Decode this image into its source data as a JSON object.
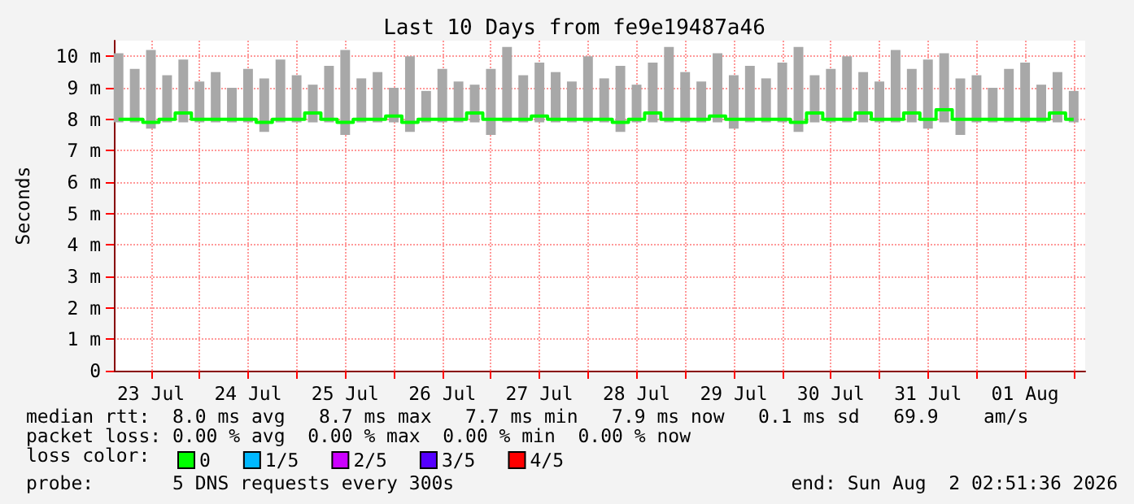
{
  "chart_data": {
    "type": "line",
    "title": "Last 10 Days from fe9e19487a46",
    "ylabel": "Seconds",
    "x": [
      "2026-07-23T04:00",
      "2026-07-23T08:00",
      "2026-07-23T12:00",
      "2026-07-23T16:00",
      "2026-07-23T20:00",
      "2026-07-24T00:00",
      "2026-07-24T04:00",
      "2026-07-24T08:00",
      "2026-07-24T12:00",
      "2026-07-24T16:00",
      "2026-07-24T20:00",
      "2026-07-25T00:00",
      "2026-07-25T04:00",
      "2026-07-25T08:00",
      "2026-07-25T12:00",
      "2026-07-25T16:00",
      "2026-07-25T20:00",
      "2026-07-26T00:00",
      "2026-07-26T04:00",
      "2026-07-26T08:00",
      "2026-07-26T12:00",
      "2026-07-26T16:00",
      "2026-07-26T20:00",
      "2026-07-27T00:00",
      "2026-07-27T04:00",
      "2026-07-27T08:00",
      "2026-07-27T12:00",
      "2026-07-27T16:00",
      "2026-07-27T20:00",
      "2026-07-28T00:00",
      "2026-07-28T04:00",
      "2026-07-28T08:00",
      "2026-07-28T12:00",
      "2026-07-28T16:00",
      "2026-07-28T20:00",
      "2026-07-29T00:00",
      "2026-07-29T04:00",
      "2026-07-29T08:00",
      "2026-07-29T12:00",
      "2026-07-29T16:00",
      "2026-07-29T20:00",
      "2026-07-30T00:00",
      "2026-07-30T04:00",
      "2026-07-30T08:00",
      "2026-07-30T12:00",
      "2026-07-30T16:00",
      "2026-07-30T20:00",
      "2026-07-31T00:00",
      "2026-07-31T04:00",
      "2026-07-31T08:00",
      "2026-07-31T12:00",
      "2026-07-31T16:00",
      "2026-07-31T20:00",
      "2026-08-01T00:00",
      "2026-08-01T04:00",
      "2026-08-01T08:00",
      "2026-08-01T12:00",
      "2026-08-01T16:00",
      "2026-08-01T20:00",
      "2026-08-02T00:00"
    ],
    "series": [
      {
        "type": "bar",
        "color": "#a8a8a8",
        "base": [
          7.9,
          7.9,
          7.7,
          7.9,
          7.9,
          7.9,
          7.9,
          7.9,
          7.9,
          7.6,
          7.9,
          7.9,
          7.9,
          7.9,
          7.5,
          7.9,
          7.9,
          7.9,
          7.6,
          7.9,
          7.9,
          7.9,
          7.9,
          7.5,
          7.9,
          7.9,
          7.9,
          7.9,
          7.9,
          7.9,
          7.9,
          7.6,
          7.9,
          7.9,
          7.9,
          7.9,
          7.9,
          7.9,
          7.7,
          7.9,
          7.9,
          7.9,
          7.6,
          7.9,
          7.9,
          7.9,
          7.9,
          7.9,
          7.9,
          7.9,
          7.7,
          7.9,
          7.5,
          7.9,
          7.9,
          7.9,
          7.9,
          7.9,
          7.9,
          7.9
        ],
        "values": [
          2.2,
          1.7,
          2.5,
          1.5,
          2.0,
          1.3,
          1.6,
          1.1,
          1.7,
          1.7,
          2.0,
          1.5,
          1.2,
          1.8,
          2.7,
          1.4,
          1.6,
          1.1,
          2.4,
          1.0,
          1.7,
          1.3,
          1.2,
          2.1,
          2.4,
          1.5,
          1.9,
          1.6,
          1.3,
          2.1,
          1.4,
          2.1,
          1.2,
          1.9,
          2.4,
          1.6,
          1.3,
          2.2,
          1.7,
          1.8,
          1.4,
          1.9,
          2.7,
          1.5,
          1.7,
          2.1,
          1.6,
          1.3,
          2.3,
          1.7,
          2.2,
          2.2,
          1.8,
          1.5,
          1.1,
          1.7,
          1.9,
          1.2,
          1.6,
          1.0
        ]
      },
      {
        "name": "0",
        "color": "#00ff00",
        "values": [
          8.0,
          8.0,
          7.9,
          8.0,
          8.2,
          8.0,
          8.0,
          8.0,
          8.0,
          7.9,
          8.0,
          8.0,
          8.2,
          8.0,
          7.9,
          8.0,
          8.0,
          8.1,
          7.9,
          8.0,
          8.0,
          8.0,
          8.2,
          8.0,
          8.0,
          8.0,
          8.1,
          8.0,
          8.0,
          8.0,
          8.0,
          7.9,
          8.0,
          8.2,
          8.0,
          8.0,
          8.0,
          8.1,
          8.0,
          8.0,
          8.0,
          8.0,
          7.9,
          8.2,
          8.0,
          8.0,
          8.2,
          8.0,
          8.0,
          8.2,
          8.0,
          8.3,
          8.0,
          8.0,
          8.0,
          8.0,
          8.0,
          8.0,
          8.2,
          8.0
        ]
      },
      {
        "type": "line",
        "name": "1/5",
        "color": "#00b8ff",
        "values": [
          null,
          null,
          null,
          null,
          null,
          null,
          null,
          null,
          null,
          null,
          null,
          null,
          null,
          null,
          null,
          null,
          null,
          null,
          null,
          null,
          null,
          null,
          null,
          null,
          null,
          null,
          null,
          null,
          null,
          null,
          null,
          null,
          null,
          null,
          null,
          null,
          null,
          null,
          null,
          null,
          null,
          null,
          null,
          null,
          null,
          null,
          null,
          null,
          null,
          null,
          null,
          null,
          null,
          null,
          null,
          null,
          null,
          null,
          null,
          null
        ]
      },
      {
        "type": "line",
        "name": "2/5",
        "color": "#cc00ff",
        "values": [
          null,
          null,
          null,
          null,
          null,
          null,
          null,
          null,
          null,
          null,
          null,
          null,
          null,
          null,
          null,
          null,
          null,
          null,
          null,
          null,
          null,
          null,
          null,
          null,
          null,
          null,
          null,
          null,
          null,
          null,
          null,
          null,
          null,
          null,
          null,
          null,
          null,
          null,
          null,
          null,
          null,
          null,
          null,
          null,
          null,
          null,
          null,
          null,
          null,
          null,
          null,
          null,
          null,
          null,
          null,
          null,
          null,
          null,
          null,
          null
        ]
      },
      {
        "type": "line",
        "name": "3/5",
        "color": "#5500ff",
        "values": [
          null,
          null,
          null,
          null,
          null,
          null,
          null,
          null,
          null,
          null,
          null,
          null,
          null,
          null,
          null,
          null,
          null,
          null,
          null,
          null,
          null,
          null,
          null,
          null,
          null,
          null,
          null,
          null,
          null,
          null,
          null,
          null,
          null,
          null,
          null,
          null,
          null,
          null,
          null,
          null,
          null,
          null,
          null,
          null,
          null,
          null,
          null,
          null,
          null,
          null,
          null,
          null,
          null,
          null,
          null,
          null,
          null,
          null,
          null,
          null
        ]
      },
      {
        "type": "line",
        "name": "4/5",
        "color": "#ff0000",
        "values": [
          null,
          null,
          null,
          null,
          null,
          null,
          null,
          null,
          null,
          null,
          null,
          null,
          null,
          null,
          null,
          null,
          null,
          null,
          null,
          null,
          null,
          null,
          null,
          null,
          null,
          null,
          null,
          null,
          null,
          null,
          null,
          null,
          null,
          null,
          null,
          null,
          null,
          null,
          null,
          null,
          null,
          null,
          null,
          null,
          null,
          null,
          null,
          null,
          null,
          null,
          null,
          null,
          null,
          null,
          null,
          null,
          null,
          null,
          null,
          null
        ]
      }
    ],
    "xlim": [
      "2026-07-23T02:51",
      "2026-08-02T02:51"
    ],
    "xticks": [
      {
        "value": "2026-07-23T12:00",
        "label": "23 Jul"
      },
      {
        "value": "2026-07-24T00:00",
        "label": null
      },
      {
        "value": "2026-07-24T12:00",
        "label": "24 Jul"
      },
      {
        "value": "2026-07-25T00:00",
        "label": null
      },
      {
        "value": "2026-07-25T12:00",
        "label": "25 Jul"
      },
      {
        "value": "2026-07-26T00:00",
        "label": null
      },
      {
        "value": "2026-07-26T12:00",
        "label": "26 Jul"
      },
      {
        "value": "2026-07-27T00:00",
        "label": null
      },
      {
        "value": "2026-07-27T12:00",
        "label": "27 Jul"
      },
      {
        "value": "2026-07-28T00:00",
        "label": null
      },
      {
        "value": "2026-07-28T12:00",
        "label": "28 Jul"
      },
      {
        "value": "2026-07-29T00:00",
        "label": null
      },
      {
        "value": "2026-07-29T12:00",
        "label": "29 Jul"
      },
      {
        "value": "2026-07-30T00:00",
        "label": null
      },
      {
        "value": "2026-07-30T12:00",
        "label": "30 Jul"
      },
      {
        "value": "2026-07-31T00:00",
        "label": null
      },
      {
        "value": "2026-07-31T12:00",
        "label": "31 Jul"
      },
      {
        "value": "2026-08-01T00:00",
        "label": null
      },
      {
        "value": "2026-08-01T12:00",
        "label": "01 Aug"
      },
      {
        "value": "2026-08-02T00:00",
        "label": null
      }
    ],
    "ylim": [
      0,
      10.5
    ],
    "yticks": [
      0,
      {
        "value": 1,
        "label": "1 m"
      },
      {
        "value": 2,
        "label": "2 m"
      },
      {
        "value": 3,
        "label": "3 m"
      },
      {
        "value": 4,
        "label": "4 m"
      },
      {
        "value": 5,
        "label": "5 m"
      },
      {
        "value": 6,
        "label": "6 m"
      },
      {
        "value": 7,
        "label": "7 m"
      },
      {
        "value": 8,
        "label": "8 m"
      },
      {
        "value": 9,
        "label": "9 m"
      },
      {
        "value": 10,
        "label": "10 m"
      }
    ],
    "grid": true,
    "legend": "bottom left",
    "marker": "none",
    "line_style": "solid",
    "annotations": [
      "median rtt:  8.0 ms avg   8.7 ms max   7.7 ms min   7.9 ms now   0.1 ms sd   69.9    am/s",
      "packet loss: 0.00 % avg  0.00 % max  0.00 % min  0.00 % now",
      "loss color:",
      "probe:       5 DNS requests every 300s",
      "end: Sun Aug  2 02:51:36 2026"
    ]
  }
}
